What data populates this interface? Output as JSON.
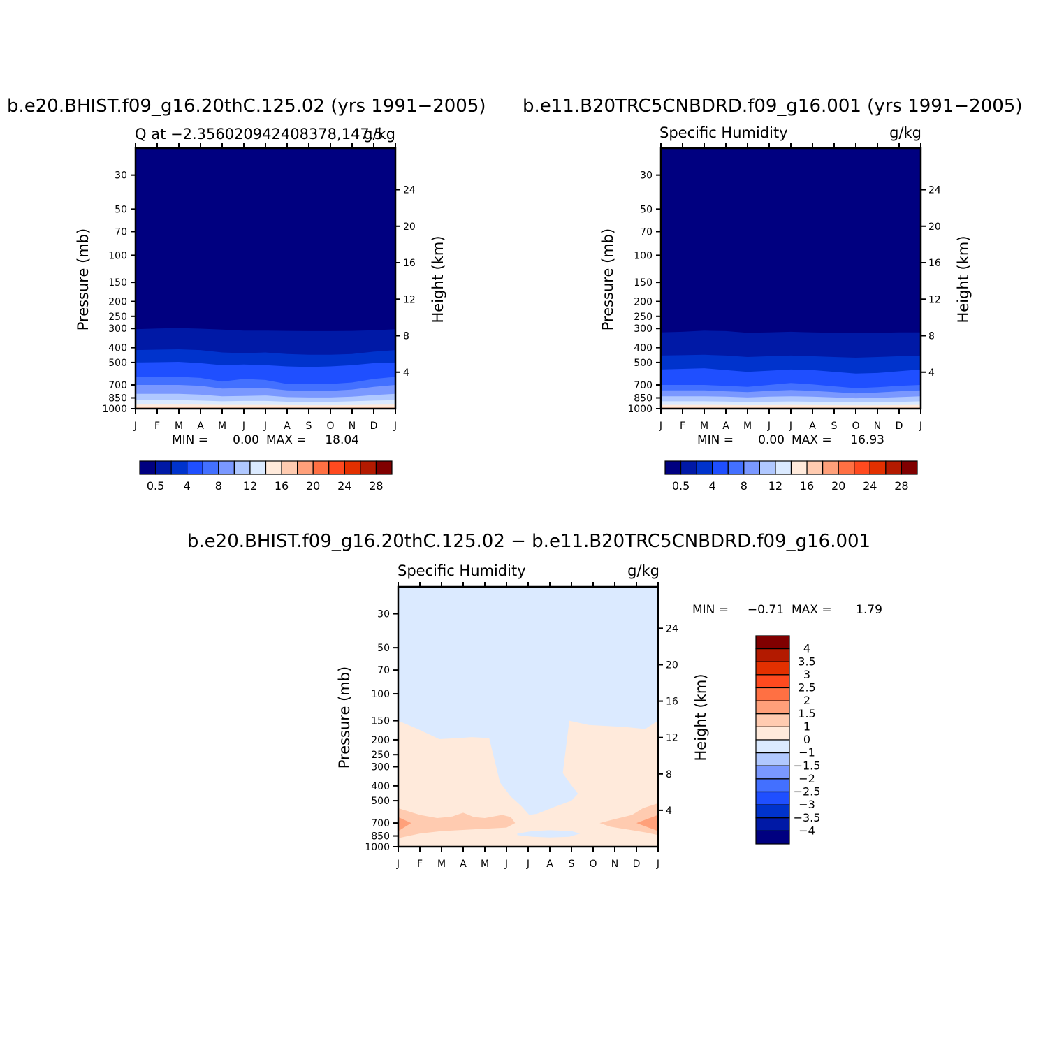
{
  "colors": {
    "absolute_scale": [
      "#000080",
      "#0019a6",
      "#0033cc",
      "#1f4fff",
      "#4370ff",
      "#7a98ff",
      "#b0c8ff",
      "#dbeaff",
      "#ffeadb",
      "#ffcbb0",
      "#ffa07a",
      "#ff7043",
      "#ff4a1f",
      "#e33000",
      "#b31a00",
      "#800000"
    ],
    "difference_scale": [
      "#000080",
      "#0019a6",
      "#0033cc",
      "#1f4fff",
      "#4370ff",
      "#7a98ff",
      "#b0c8ff",
      "#dbeaff",
      "#ffeadb",
      "#ffcbb0",
      "#ffa07a",
      "#ff7043",
      "#ff4a1f",
      "#e33000",
      "#b31a00",
      "#800000"
    ]
  },
  "chart_data": [
    {
      "type": "heatmap",
      "title": "b.e20.BHIST.f09_g16.20thC.125.02 (yrs 1991−2005)",
      "subtitle_left": "Q at −2.356020942408378,147.5",
      "subtitle_right": "g/kg",
      "xlabel": "",
      "ylabel": "Pressure (mb)",
      "ylabel_right": "Height (km)",
      "x_ticks": [
        "J",
        "F",
        "M",
        "A",
        "M",
        "J",
        "J",
        "A",
        "S",
        "O",
        "N",
        "D",
        "J"
      ],
      "y_ticks": [
        "30",
        "50",
        "70",
        "100",
        "150",
        "200",
        "250",
        "300",
        "400",
        "500",
        "700",
        "850",
        "1000"
      ],
      "y_tick_values": [
        30,
        50,
        70,
        100,
        150,
        200,
        250,
        300,
        400,
        500,
        700,
        850,
        1000
      ],
      "y2_ticks": [
        "24",
        "20",
        "16",
        "12",
        "8",
        "4"
      ],
      "y2_tick_values": [
        24,
        20,
        16,
        12,
        8,
        4
      ],
      "ylim": [
        1000,
        20
      ],
      "stats": {
        "min_label": "MIN =",
        "min": "0.00",
        "max_label": "MAX =",
        "max": "18.04"
      },
      "colorbar_labels": [
        "0.5",
        "4",
        "8",
        "12",
        "16",
        "20",
        "24",
        "28"
      ],
      "contour_levels": [
        0.5,
        2,
        4,
        6,
        8,
        10,
        12,
        14,
        16,
        18,
        20,
        22,
        24,
        26,
        28
      ],
      "boundaries": [
        {
          "level": 0.5,
          "p": [
            303,
            300,
            298,
            301,
            305,
            310,
            310,
            311,
            312,
            312,
            311,
            308,
            303
          ]
        },
        {
          "level": 2,
          "p": [
            415,
            412,
            410,
            415,
            430,
            435,
            430,
            440,
            445,
            445,
            440,
            425,
            415
          ]
        },
        {
          "level": 4,
          "p": [
            500,
            498,
            495,
            505,
            520,
            515,
            520,
            530,
            535,
            530,
            520,
            505,
            500
          ]
        },
        {
          "level": 6,
          "p": [
            620,
            620,
            620,
            630,
            665,
            640,
            650,
            690,
            690,
            690,
            675,
            640,
            620
          ]
        },
        {
          "level": 8,
          "p": [
            700,
            700,
            700,
            710,
            740,
            735,
            735,
            760,
            765,
            765,
            750,
            720,
            700
          ]
        },
        {
          "level": 10,
          "p": [
            800,
            800,
            800,
            810,
            830,
            825,
            820,
            840,
            845,
            845,
            835,
            815,
            800
          ]
        },
        {
          "level": 12,
          "p": [
            880,
            880,
            880,
            885,
            895,
            890,
            890,
            900,
            902,
            902,
            895,
            885,
            880
          ]
        },
        {
          "level": 14,
          "p": [
            940,
            940,
            940,
            942,
            945,
            945,
            945,
            948,
            950,
            950,
            948,
            943,
            940
          ]
        },
        {
          "level": 16,
          "p": [
            975,
            975,
            975,
            977,
            978,
            978,
            978,
            979,
            980,
            980,
            979,
            977,
            975
          ]
        }
      ]
    },
    {
      "type": "heatmap",
      "title": "b.e11.B20TRC5CNBDRD.f09_g16.001 (yrs 1991−2005)",
      "subtitle_left": "Specific Humidity",
      "subtitle_right": "g/kg",
      "xlabel": "",
      "ylabel": "Pressure (mb)",
      "ylabel_right": "Height (km)",
      "x_ticks": [
        "J",
        "F",
        "M",
        "A",
        "M",
        "J",
        "J",
        "A",
        "S",
        "O",
        "N",
        "D",
        "J"
      ],
      "y_ticks": [
        "30",
        "50",
        "70",
        "100",
        "150",
        "200",
        "250",
        "300",
        "400",
        "500",
        "700",
        "850",
        "1000"
      ],
      "y_tick_values": [
        30,
        50,
        70,
        100,
        150,
        200,
        250,
        300,
        400,
        500,
        700,
        850,
        1000
      ],
      "y2_ticks": [
        "24",
        "20",
        "16",
        "12",
        "8",
        "4"
      ],
      "y2_tick_values": [
        24,
        20,
        16,
        12,
        8,
        4
      ],
      "ylim": [
        1000,
        20
      ],
      "stats": {
        "min_label": "MIN =",
        "min": "0.00",
        "max_label": "MAX =",
        "max": "16.93"
      },
      "colorbar_labels": [
        "0.5",
        "4",
        "8",
        "12",
        "16",
        "20",
        "24",
        "28"
      ],
      "contour_levels": [
        0.5,
        2,
        4,
        6,
        8,
        10,
        12,
        14,
        16,
        18,
        20,
        22,
        24,
        26,
        28
      ],
      "boundaries": [
        {
          "level": 0.5,
          "p": [
            318,
            315,
            310,
            312,
            320,
            318,
            315,
            318,
            320,
            322,
            320,
            318,
            318
          ]
        },
        {
          "level": 2,
          "p": [
            450,
            448,
            445,
            450,
            460,
            455,
            450,
            455,
            460,
            465,
            460,
            455,
            450
          ]
        },
        {
          "level": 4,
          "p": [
            555,
            550,
            545,
            560,
            575,
            565,
            555,
            560,
            575,
            590,
            585,
            570,
            555
          ]
        },
        {
          "level": 6,
          "p": [
            700,
            700,
            700,
            710,
            720,
            700,
            680,
            695,
            715,
            735,
            725,
            710,
            700
          ]
        },
        {
          "level": 8,
          "p": [
            760,
            760,
            760,
            770,
            780,
            765,
            755,
            765,
            780,
            795,
            785,
            770,
            760
          ]
        },
        {
          "level": 10,
          "p": [
            830,
            830,
            830,
            835,
            845,
            835,
            830,
            835,
            845,
            855,
            850,
            840,
            830
          ]
        },
        {
          "level": 12,
          "p": [
            895,
            895,
            895,
            898,
            905,
            900,
            897,
            900,
            905,
            910,
            908,
            902,
            895
          ]
        },
        {
          "level": 14,
          "p": [
            945,
            945,
            945,
            947,
            950,
            948,
            946,
            948,
            950,
            952,
            951,
            948,
            945
          ]
        },
        {
          "level": 16,
          "p": [
            980,
            980,
            980,
            981,
            982,
            981,
            980,
            981,
            982,
            983,
            982,
            981,
            980
          ]
        }
      ]
    },
    {
      "type": "heatmap",
      "title": "b.e20.BHIST.f09_g16.20thC.125.02 − b.e11.B20TRC5CNBDRD.f09_g16.001",
      "subtitle_left": "Specific Humidity",
      "subtitle_right": "g/kg",
      "xlabel": "",
      "ylabel": "Pressure (mb)",
      "ylabel_right": "Height (km)",
      "x_ticks": [
        "J",
        "F",
        "M",
        "A",
        "M",
        "J",
        "J",
        "A",
        "S",
        "O",
        "N",
        "D",
        "J"
      ],
      "y_ticks": [
        "30",
        "50",
        "70",
        "100",
        "150",
        "200",
        "250",
        "300",
        "400",
        "500",
        "700",
        "850",
        "1000"
      ],
      "y_tick_values": [
        30,
        50,
        70,
        100,
        150,
        200,
        250,
        300,
        400,
        500,
        700,
        850,
        1000
      ],
      "y2_ticks": [
        "24",
        "20",
        "16",
        "12",
        "8",
        "4"
      ],
      "y2_tick_values": [
        24,
        20,
        16,
        12,
        8,
        4
      ],
      "ylim": [
        1000,
        20
      ],
      "stats": {
        "min_label": "MIN =",
        "min": "−0.71",
        "max_label": "MAX =",
        "max": "1.79"
      },
      "colorbar_labels": [
        "−4",
        "−3.5",
        "−3",
        "−2.5",
        "−2",
        "−1.5",
        "−1",
        "0",
        "1",
        "1.5",
        "2",
        "2.5",
        "3",
        "3.5",
        "4"
      ],
      "contour_levels": [
        -4,
        -3.5,
        -3,
        -2.5,
        -2,
        -1.5,
        -1,
        0,
        1,
        1.5,
        2,
        2.5,
        3,
        3.5,
        4
      ],
      "background_class": "-1 to 0",
      "regions": [
        {
          "class": "0 to 1",
          "points": [
            [
              0,
              150
            ],
            [
              0.9,
              170
            ],
            [
              1.9,
              198
            ],
            [
              2.8,
              195
            ],
            [
              3.4,
              192
            ],
            [
              4.2,
              195
            ],
            [
              4.7,
              380
            ],
            [
              5.2,
              470
            ],
            [
              5.7,
              545
            ],
            [
              6.05,
              620
            ],
            [
              6.4,
              610
            ],
            [
              7.2,
              550
            ],
            [
              8.0,
              500
            ],
            [
              8.3,
              450
            ],
            [
              7.9,
              380
            ],
            [
              7.6,
              330
            ],
            [
              7.9,
              150
            ],
            [
              8.8,
              160
            ],
            [
              10.5,
              165
            ],
            [
              11.4,
              170
            ],
            [
              12,
              150
            ],
            [
              12,
              1000
            ],
            [
              0,
              1000
            ]
          ]
        },
        {
          "class": "-1 to 0",
          "points": [
            [
              5.5,
              820
            ],
            [
              6.2,
              790
            ],
            [
              7.0,
              780
            ],
            [
              8.0,
              790
            ],
            [
              8.4,
              820
            ],
            [
              7.9,
              860
            ],
            [
              7.0,
              870
            ],
            [
              6.2,
              860
            ],
            [
              5.5,
              840
            ]
          ]
        },
        {
          "class": "1 to 1.5",
          "points": [
            [
              0,
              560
            ],
            [
              1.0,
              620
            ],
            [
              1.8,
              650
            ],
            [
              2.5,
              635
            ],
            [
              3.0,
              600
            ],
            [
              3.5,
              640
            ],
            [
              4.0,
              650
            ],
            [
              4.8,
              620
            ],
            [
              5.2,
              640
            ],
            [
              5.4,
              700
            ],
            [
              5.0,
              750
            ],
            [
              3.5,
              770
            ],
            [
              2.0,
              790
            ],
            [
              1.0,
              820
            ],
            [
              0,
              880
            ]
          ]
        },
        {
          "class": "1 to 1.5",
          "points": [
            [
              12,
              520
            ],
            [
              11.3,
              560
            ],
            [
              10.8,
              620
            ],
            [
              10.0,
              660
            ],
            [
              9.3,
              700
            ],
            [
              9.8,
              740
            ],
            [
              10.8,
              780
            ],
            [
              11.5,
              810
            ],
            [
              12,
              840
            ]
          ]
        },
        {
          "class": "1.5 to 2",
          "points": [
            [
              0,
              640
            ],
            [
              0.6,
              700
            ],
            [
              0,
              790
            ]
          ]
        },
        {
          "class": "1.5 to 2",
          "points": [
            [
              12,
              620
            ],
            [
              11.0,
              700
            ],
            [
              12,
              790
            ]
          ]
        }
      ]
    }
  ]
}
